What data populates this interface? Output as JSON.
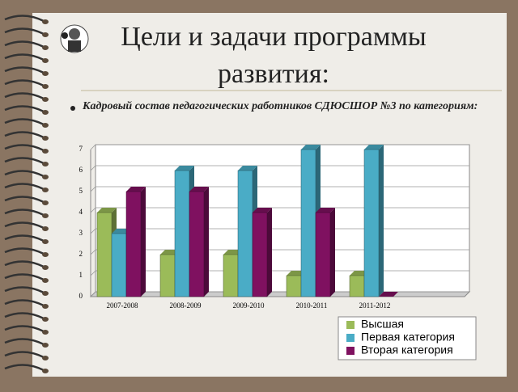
{
  "header": {
    "title_line1": "Цели и задачи программы",
    "title_line2": "развития:",
    "bullet": "Кадровый состав педагогических работников СДЮСШОР №3 по категориям:"
  },
  "chart_data": {
    "type": "bar",
    "categories": [
      "2007-2008",
      "2008-2009",
      "2009-2010",
      "2010-2011",
      "2011-2012",
      null
    ],
    "series": [
      {
        "name": "Высшая",
        "color": "#9bbb59",
        "values": [
          4,
          2,
          2,
          1,
          1,
          null
        ]
      },
      {
        "name": "Первая категория",
        "color": "#4aacc6",
        "values": [
          3,
          6,
          6,
          7,
          7,
          null
        ]
      },
      {
        "name": "Вторая категория",
        "color": "#7f1160",
        "values": [
          5,
          5,
          4,
          4,
          0,
          null
        ]
      }
    ],
    "ylim": [
      0,
      7
    ],
    "yticks": [
      0,
      1,
      2,
      3,
      4,
      5,
      6,
      7
    ],
    "grid": true,
    "legend": "bottom-right"
  }
}
